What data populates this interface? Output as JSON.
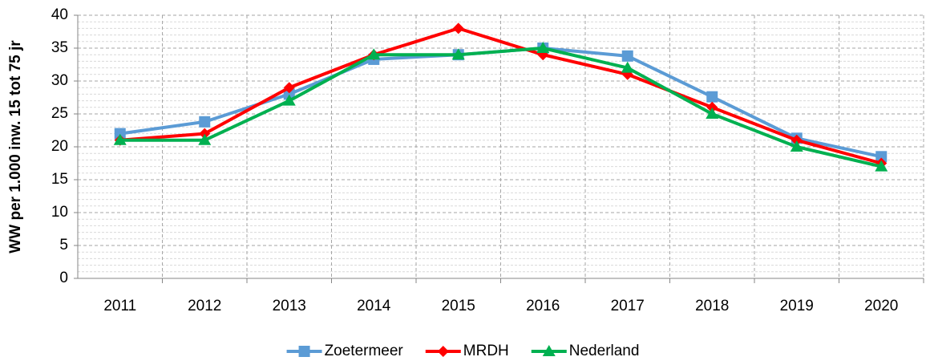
{
  "chart_data": {
    "type": "line",
    "y_label": "WW per 1.000 inw. 15 tot 75 jr",
    "categories": [
      "2011",
      "2012",
      "2013",
      "2014",
      "2015",
      "2016",
      "2017",
      "2018",
      "2019",
      "2020"
    ],
    "series": [
      {
        "name": "Zoetermeer",
        "color": "#5b9bd5",
        "marker": "square",
        "values": [
          22,
          23.8,
          28,
          33.3,
          34,
          35,
          33.8,
          27.6,
          21.3,
          18.5
        ]
      },
      {
        "name": "MRDH",
        "color": "#ff0000",
        "marker": "diamond",
        "values": [
          21,
          22,
          29,
          34,
          38,
          34,
          31,
          26,
          21,
          17.5
        ]
      },
      {
        "name": "Nederland",
        "color": "#00b050",
        "marker": "triangle",
        "values": [
          21,
          21,
          27,
          34,
          34,
          35,
          32,
          25,
          20,
          17
        ]
      }
    ],
    "ylim": [
      0,
      40
    ],
    "yticks": [
      0,
      5,
      10,
      15,
      20,
      25,
      30,
      35,
      40
    ],
    "grid": true,
    "legend": "bottom"
  }
}
